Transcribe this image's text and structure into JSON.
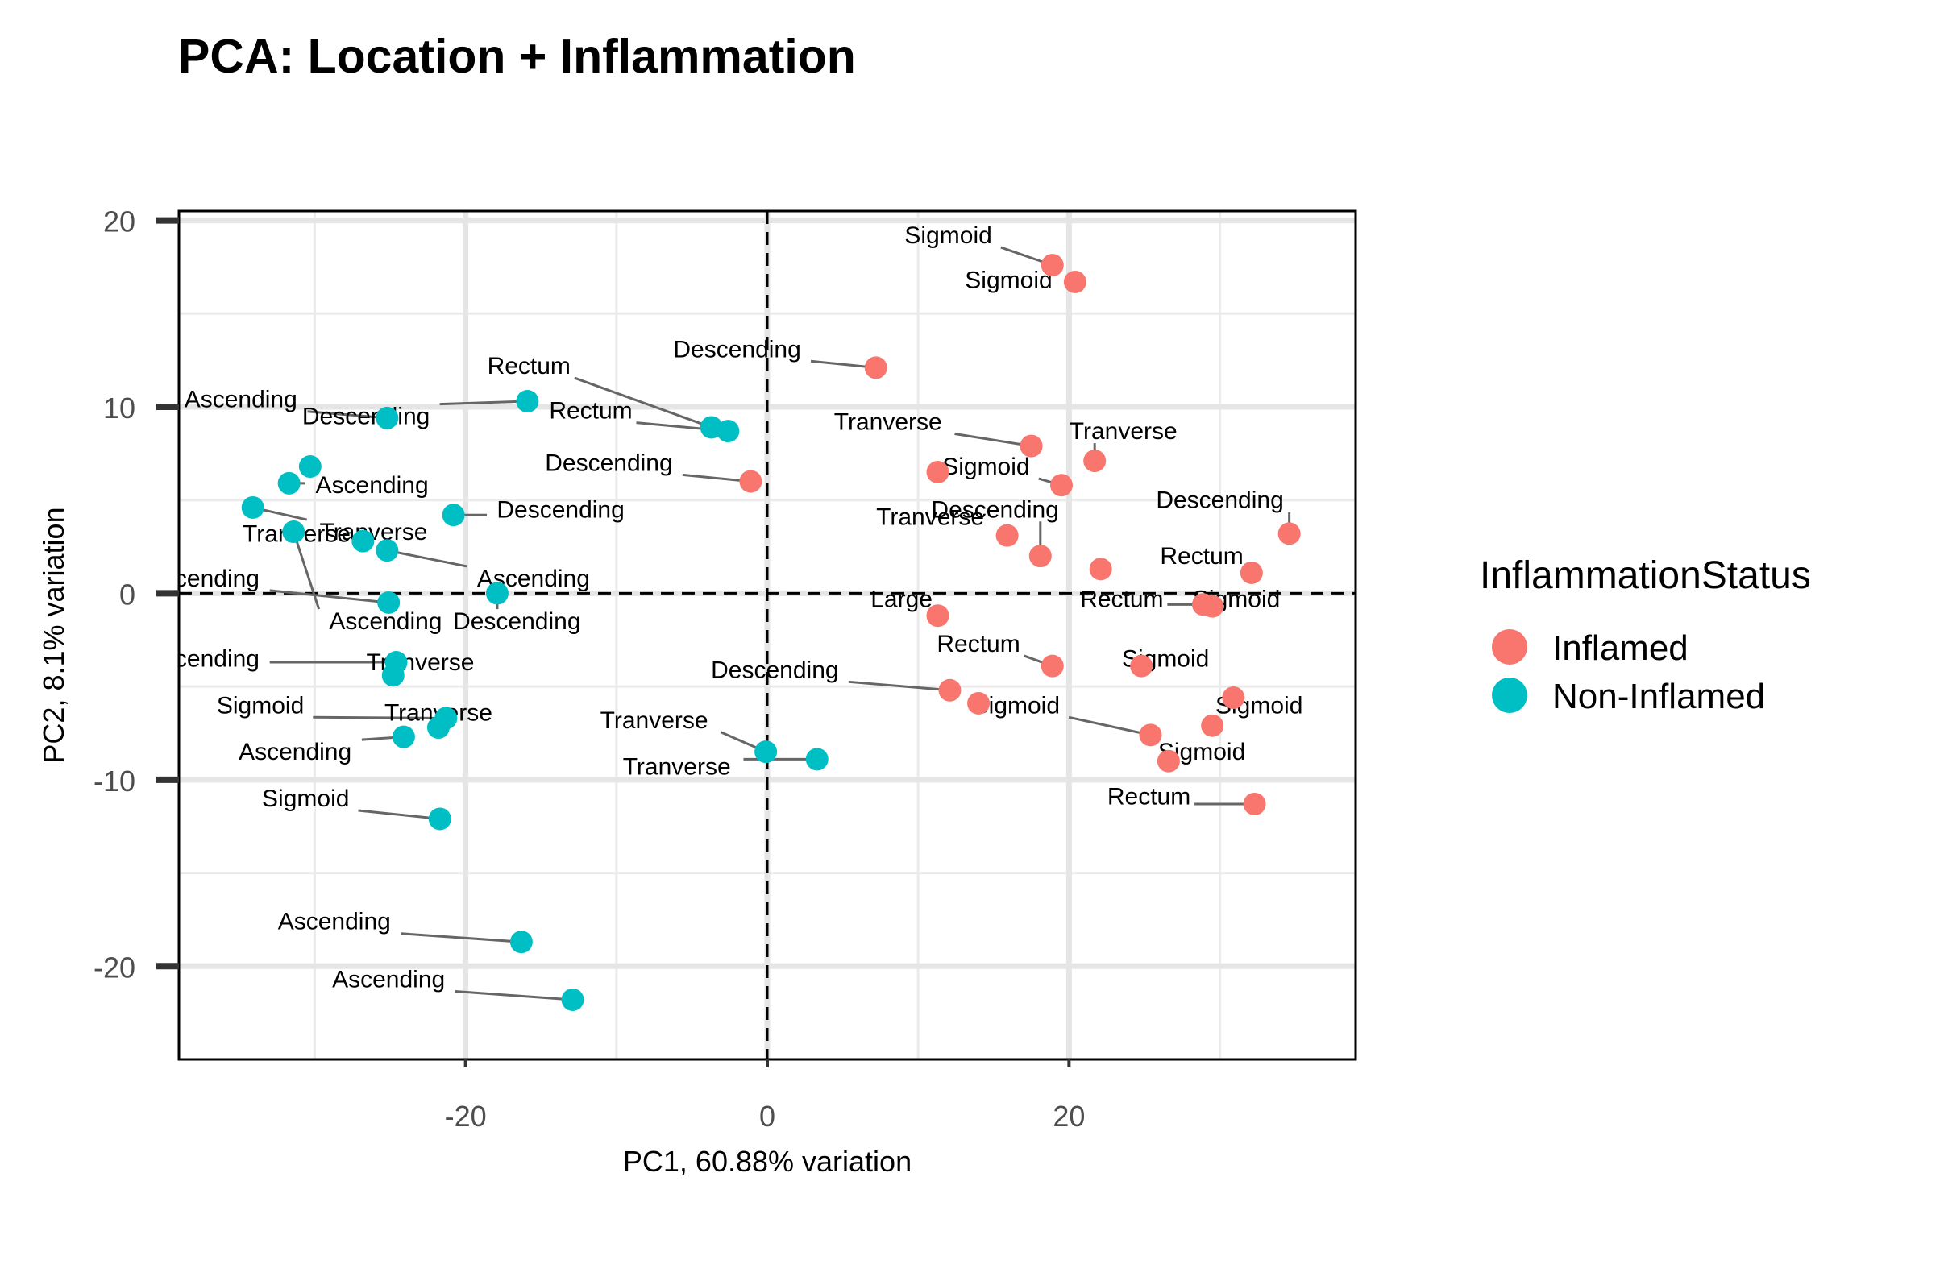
{
  "chart_data": {
    "type": "scatter",
    "title": "PCA: Location + Inflammation",
    "xlabel": "PC1, 60.88% variation",
    "ylabel": "PC2, 8.1% variation",
    "xlim": [
      -39,
      39
    ],
    "ylim": [
      -25,
      20.5
    ],
    "xticks": [
      -20,
      0,
      20
    ],
    "yticks": [
      20,
      10,
      0,
      -10,
      -20
    ],
    "xtick_labels": [
      "-20",
      "0",
      "20"
    ],
    "ytick_labels": [
      "20",
      "10",
      "0",
      "-10",
      "-20"
    ],
    "grid": true,
    "reference_lines": {
      "x": 0,
      "y": 0,
      "style": "dashed"
    },
    "legend": {
      "title": "InflammationStatus",
      "placement": "right",
      "entries": [
        {
          "name": "Inflamed",
          "color": "#F8766D"
        },
        {
          "name": "Non-Inflamed",
          "color": "#00BFC4"
        }
      ]
    },
    "series": [
      {
        "name": "Inflamed",
        "color": "#F8766D",
        "points": [
          {
            "x": 18.9,
            "y": 17.6,
            "label": "Sigmoid",
            "lx": 12,
            "ly": 19.2
          },
          {
            "x": 20.4,
            "y": 16.7,
            "label": "Sigmoid",
            "lx": 16,
            "ly": 16.8
          },
          {
            "x": 7.2,
            "y": 12.1,
            "label": "Descending",
            "lx": -2,
            "ly": 13.1
          },
          {
            "x": 17.5,
            "y": 7.9,
            "label": "Tranverse",
            "lx": 8,
            "ly": 9.2
          },
          {
            "x": 21.7,
            "y": 7.1,
            "label": "Tranverse",
            "lx": 23.6,
            "ly": 8.7
          },
          {
            "x": 11.3,
            "y": 6.5,
            "label": "",
            "lx": 0,
            "ly": 0
          },
          {
            "x": 19.5,
            "y": 5.8,
            "label": "Sigmoid",
            "lx": 14.5,
            "ly": 6.8
          },
          {
            "x": -1.1,
            "y": 6.0,
            "label": "Descending",
            "lx": -10.5,
            "ly": 7.0
          },
          {
            "x": 34.6,
            "y": 3.2,
            "label": "Descending",
            "lx": 30,
            "ly": 5.0
          },
          {
            "x": 15.9,
            "y": 3.1,
            "label": "Tranverse",
            "lx": 10.8,
            "ly": 4.1
          },
          {
            "x": 18.1,
            "y": 2.0,
            "label": "Descending",
            "lx": 15.1,
            "ly": 4.5
          },
          {
            "x": 22.1,
            "y": 1.3,
            "label": "",
            "lx": 0,
            "ly": 0
          },
          {
            "x": 32.1,
            "y": 1.1,
            "label": "Rectum",
            "lx": 28.8,
            "ly": 2.0
          },
          {
            "x": 29.5,
            "y": -0.7,
            "label": "Sigmoid",
            "lx": 31.1,
            "ly": -0.3
          },
          {
            "x": 28.9,
            "y": -0.6,
            "label": "Rectum",
            "lx": 23.5,
            "ly": -0.3
          },
          {
            "x": 11.3,
            "y": -1.2,
            "label": "Large",
            "lx": 8.9,
            "ly": -0.3
          },
          {
            "x": 18.9,
            "y": -3.9,
            "label": "Rectum",
            "lx": 14,
            "ly": -2.7
          },
          {
            "x": 24.8,
            "y": -3.9,
            "label": "Sigmoid",
            "lx": 26.4,
            "ly": -3.5
          },
          {
            "x": 12.1,
            "y": -5.2,
            "label": "Descending",
            "lx": 0.5,
            "ly": -4.1
          },
          {
            "x": 14.0,
            "y": -5.9,
            "label": "",
            "lx": 0,
            "ly": 0
          },
          {
            "x": 30.9,
            "y": -5.6,
            "label": "Sigmoid",
            "lx": 32.6,
            "ly": -6.0
          },
          {
            "x": 29.5,
            "y": -7.1,
            "label": "",
            "lx": 0,
            "ly": 0
          },
          {
            "x": 25.4,
            "y": -7.6,
            "label": "Sigmoid",
            "lx": 16.5,
            "ly": -6.0
          },
          {
            "x": 26.6,
            "y": -9.0,
            "label": "Sigmoid",
            "lx": 28.8,
            "ly": -8.5
          },
          {
            "x": 32.3,
            "y": -11.3,
            "label": "Rectum",
            "lx": 25.3,
            "ly": -10.9
          }
        ]
      },
      {
        "name": "Non-Inflamed",
        "color": "#00BFC4",
        "points": [
          {
            "x": -25.2,
            "y": 9.4,
            "label": "Ascending",
            "lx": -34.9,
            "ly": 10.4
          },
          {
            "x": -15.9,
            "y": 10.3,
            "label": "Descending",
            "lx": -26.6,
            "ly": 9.5
          },
          {
            "x": -3.7,
            "y": 8.9,
            "label": "Rectum",
            "lx": -15.8,
            "ly": 12.2
          },
          {
            "x": -2.6,
            "y": 8.7,
            "label": "Rectum",
            "lx": -11.7,
            "ly": 9.8
          },
          {
            "x": -30.3,
            "y": 6.8,
            "label": "",
            "lx": 0,
            "ly": 0
          },
          {
            "x": -31.7,
            "y": 5.9,
            "label": "Ascending",
            "lx": -26.2,
            "ly": 5.8
          },
          {
            "x": -34.1,
            "y": 4.6,
            "label": "Tranverse",
            "lx": -26.1,
            "ly": 3.3
          },
          {
            "x": -20.8,
            "y": 4.2,
            "label": "Descending",
            "lx": -13.7,
            "ly": 4.5
          },
          {
            "x": -31.4,
            "y": 3.3,
            "label": "Ascending",
            "lx": -25.3,
            "ly": -1.5
          },
          {
            "x": -26.8,
            "y": 2.8,
            "label": "Tranverse",
            "lx": -31.2,
            "ly": 3.2
          },
          {
            "x": -25.2,
            "y": 2.3,
            "label": "Ascending",
            "lx": -15.5,
            "ly": 0.8
          },
          {
            "x": -17.9,
            "y": 0.0,
            "label": "Descending",
            "lx": -16.6,
            "ly": -1.5
          },
          {
            "x": -25.1,
            "y": -0.5,
            "label": "Ascending",
            "lx": -37.4,
            "ly": 0.8
          },
          {
            "x": -24.6,
            "y": -3.7,
            "label": "Ascending",
            "lx": -37.4,
            "ly": -3.5
          },
          {
            "x": -24.8,
            "y": -4.4,
            "label": "Tranverse",
            "lx": -23,
            "ly": -3.7
          },
          {
            "x": -21.8,
            "y": -7.2,
            "label": "Tranverse",
            "lx": -21.8,
            "ly": -6.4
          },
          {
            "x": -24.1,
            "y": -7.7,
            "label": "Ascending",
            "lx": -31.3,
            "ly": -8.5
          },
          {
            "x": -21.3,
            "y": -6.7,
            "label": "Sigmoid",
            "lx": -33.6,
            "ly": -6.0
          },
          {
            "x": -0.1,
            "y": -8.5,
            "label": "Tranverse",
            "lx": -7.5,
            "ly": -6.8
          },
          {
            "x": 3.3,
            "y": -8.9,
            "label": "Tranverse",
            "lx": -6,
            "ly": -9.3
          },
          {
            "x": -21.7,
            "y": -12.1,
            "label": "Sigmoid",
            "lx": -30.6,
            "ly": -11.0
          },
          {
            "x": -16.3,
            "y": -18.7,
            "label": "Ascending",
            "lx": -28.7,
            "ly": -17.6
          },
          {
            "x": -12.9,
            "y": -21.8,
            "label": "Ascending",
            "lx": -25.1,
            "ly": -20.7
          }
        ]
      }
    ]
  }
}
